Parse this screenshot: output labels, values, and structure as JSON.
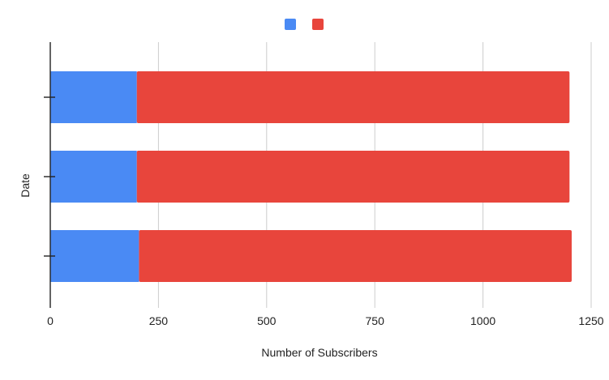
{
  "chart_data": {
    "type": "bar",
    "orientation": "horizontal",
    "stacked": true,
    "title": "",
    "xlabel": "Number of Subscribers",
    "ylabel": "Date",
    "categories": [
      "",
      "",
      ""
    ],
    "series": [
      {
        "values": [
          200,
          200,
          205
        ],
        "color": "#4a8af4"
      },
      {
        "values": [
          1000,
          1000,
          1000
        ],
        "color": "#e8453c"
      }
    ],
    "xlim": [
      0,
      1250
    ],
    "xticks": [
      0,
      250,
      500,
      750,
      1000,
      1250
    ],
    "grid": true,
    "legend_position": "top"
  }
}
